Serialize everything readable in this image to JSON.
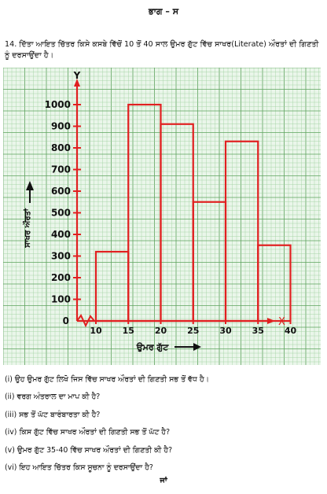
{
  "header": {
    "section_title": "ਭਾਗ – ਸ"
  },
  "question": {
    "text": "14. ਦਿੱਤਾ ਆਇਤ ਚਿੱਤਰ ਕਿਸੇ ਕਸਬੇ ਵਿੱਚੋਂ 10 ਤੋਂ 40 ਸਾਲ ਉਮਰ ਗੁੱਟ ਵਿੱਚ ਸਾਖਰ(Literate) ਔਰਤਾਂ ਦੀ ਗਿਣਤੀ ਨੂੰ ਦਰਸਾਉਂਦਾ ਹੈ।"
  },
  "chart_data": {
    "type": "bar",
    "title": "",
    "xlabel": "ਉਮਰ ਗੁੱਟ",
    "ylabel": "ਸਾਖਰ ਔਰਤਾਂ",
    "x_axis_letter": "X",
    "y_axis_letter": "Y",
    "origin_label": "0",
    "categories": [
      "10-15",
      "15-20",
      "20-25",
      "25-30",
      "30-35",
      "35-40"
    ],
    "bins": [
      [
        10,
        15
      ],
      [
        15,
        20
      ],
      [
        20,
        25
      ],
      [
        25,
        30
      ],
      [
        30,
        35
      ],
      [
        35,
        40
      ]
    ],
    "values": [
      320,
      1000,
      910,
      550,
      830,
      350
    ],
    "x_ticks": [
      10,
      15,
      20,
      25,
      30,
      35,
      40
    ],
    "y_ticks": [
      100,
      200,
      300,
      400,
      500,
      600,
      700,
      800,
      900,
      1000
    ],
    "ylim": [
      0,
      1100
    ],
    "grid": true,
    "colors": {
      "bars": "#e02020",
      "axis": "#e02020",
      "grid": "#9ccf9c",
      "grid_major": "#5da35d",
      "grid_bg": "#eaf6ea"
    }
  },
  "sub_questions": [
    "(i) ਉਹ ਉਮਰ ਗੁੱਟ ਲਿਖੋ ਜਿਸ ਵਿੱਚ ਸਾਖਰ ਔਰਤਾਂ ਦੀ ਗਿਣਤੀ ਸਭ ਤੋਂ ਵੱਧ ਹੈ।",
    "(ii) ਵਰਗ ਅੰਤਰਾਲ ਦਾ ਮਾਪ ਕੀ ਹੈ?",
    "(iii) ਸਭ ਤੋਂ ਘੱਟ ਬਾਰੰਬਾਰਤਾ ਕੀ ਹੈ?",
    "(iv) ਕਿਸ ਗੁੱਟ ਵਿੱਚ ਸਾਖਰ ਔਰਤਾਂ ਦੀ ਗਿਣਤੀ ਸਭ ਤੋਂ ਘੱਟ ਹੈ?",
    "(v) ਉਮਰ ਗੁੱਟ 35-40 ਵਿੱਚ ਸਾਖਰ ਔਰਤਾਂ ਦੀ ਗਿਣਤੀ ਕੀ ਹੈ?",
    "(vi) ਇਹ ਆਇਤ ਚਿੱਤਰ ਕਿਸ ਸੂਚਨਾ ਨੂੰ ਦਰਸਾਉਂਦਾ ਹੈ?"
  ],
  "footer": {
    "or_label": "ਜਾਂ"
  }
}
